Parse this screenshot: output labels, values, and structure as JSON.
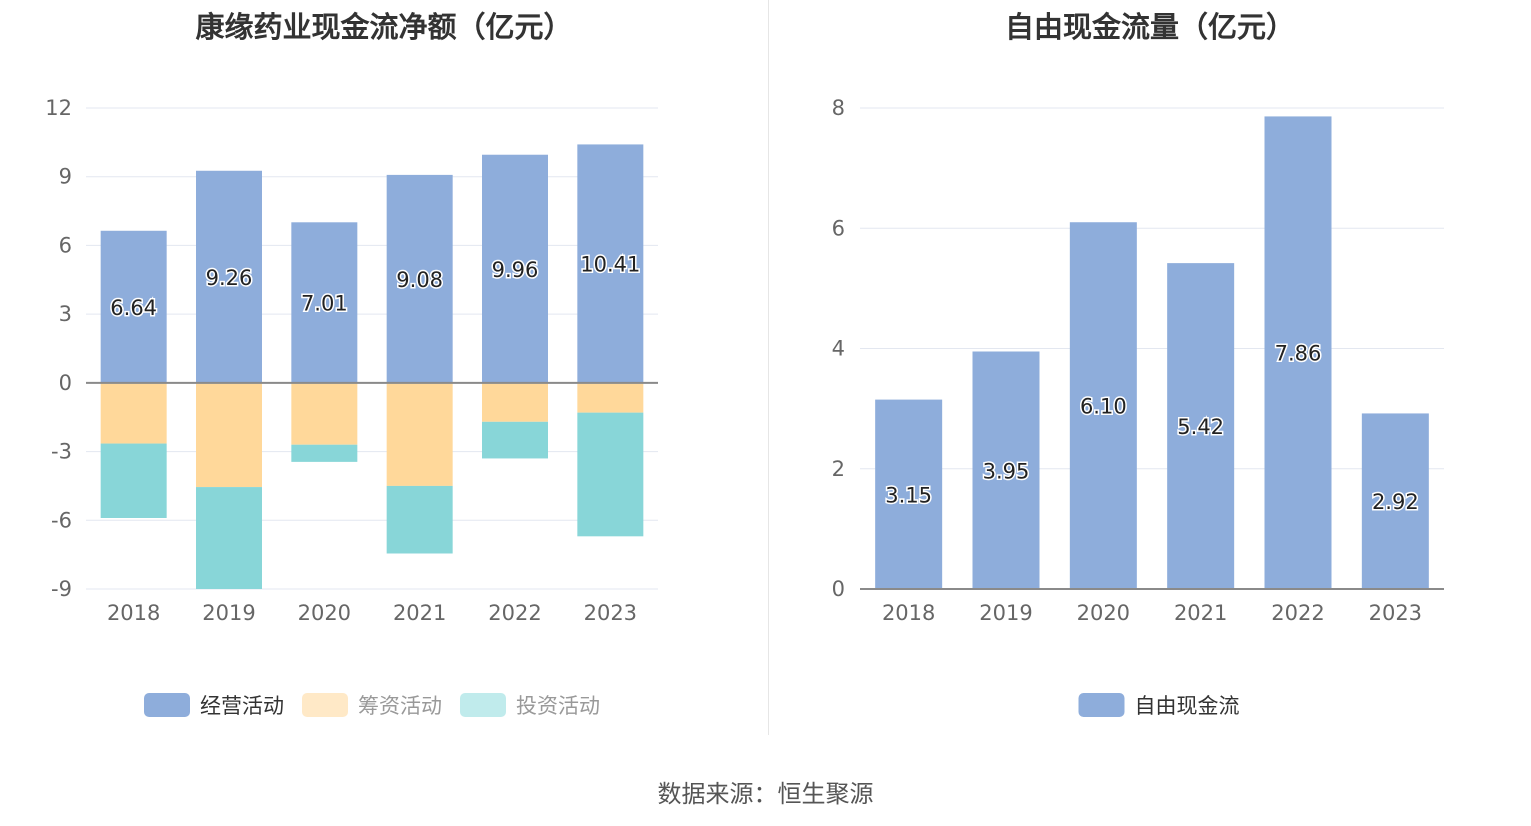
{
  "left_chart": {
    "title": "康缘药业现金流净额（亿元）",
    "chart_data": {
      "type": "bar",
      "stacked": true,
      "categories": [
        "2018",
        "2019",
        "2020",
        "2021",
        "2022",
        "2023"
      ],
      "series": [
        {
          "name": "经营活动",
          "color": "#8eaddb",
          "values": [
            6.64,
            9.26,
            7.01,
            9.08,
            9.96,
            10.41
          ],
          "show_labels": true
        },
        {
          "name": "筹资活动",
          "color": "#ffd89a",
          "values": [
            -2.65,
            -4.55,
            -2.7,
            -4.5,
            -1.7,
            -1.3
          ],
          "show_labels": false
        },
        {
          "name": "投资活动",
          "color": "#88d6d8",
          "values": [
            -3.25,
            -4.45,
            -0.75,
            -2.95,
            -1.6,
            -5.4
          ],
          "show_labels": false
        }
      ],
      "yticks": [
        12,
        9,
        6,
        3,
        0,
        -3,
        -6,
        -9
      ],
      "ylim": [
        -9,
        12
      ],
      "grid": true,
      "legend_position": "bottom"
    },
    "legend": {
      "items": [
        {
          "label": "经营活动",
          "color": "#8eaddb"
        },
        {
          "label": "筹资活动",
          "color": "#ffe9c7"
        },
        {
          "label": "投资活动",
          "color": "#c0ebec"
        }
      ]
    }
  },
  "right_chart": {
    "title": "自由现金流量（亿元）",
    "chart_data": {
      "type": "bar",
      "categories": [
        "2018",
        "2019",
        "2020",
        "2021",
        "2022",
        "2023"
      ],
      "series": [
        {
          "name": "自由现金流",
          "color": "#8eaddb",
          "values": [
            3.15,
            3.95,
            6.1,
            5.42,
            7.86,
            2.92
          ]
        }
      ],
      "yticks": [
        8,
        6,
        4,
        2,
        0
      ],
      "ylim": [
        0,
        8
      ],
      "grid": true,
      "legend_position": "bottom"
    },
    "legend": {
      "items": [
        {
          "label": "自由现金流",
          "color": "#8eaddb"
        }
      ]
    }
  },
  "footer": {
    "source": "数据来源：恒生聚源"
  }
}
